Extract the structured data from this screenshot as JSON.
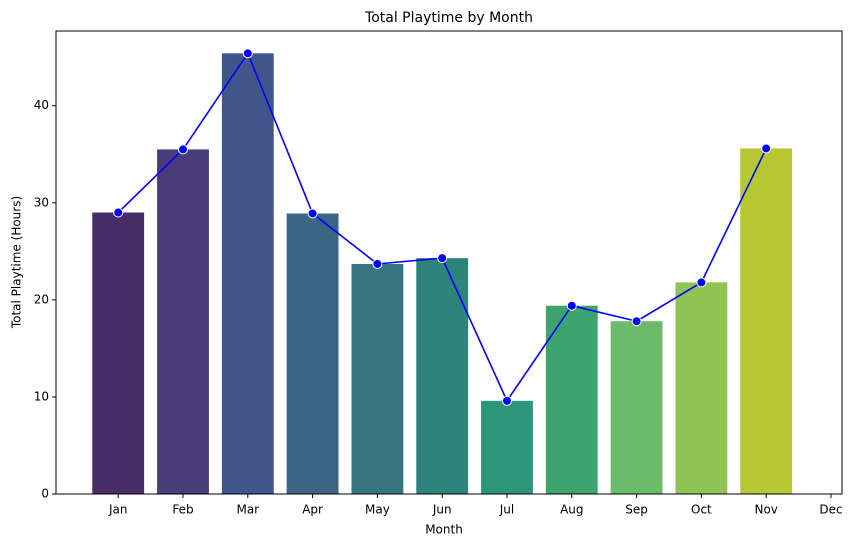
{
  "chart_data": {
    "type": "bar",
    "title": "Total Playtime by Month",
    "x_label": "Month",
    "y_label": "Total Playtime (Hours)",
    "categories": [
      "Jan",
      "Feb",
      "Mar",
      "Apr",
      "May",
      "Jun",
      "Jul",
      "Aug",
      "Sep",
      "Oct",
      "Nov",
      "Dec"
    ],
    "values": [
      29.0,
      35.5,
      45.4,
      28.9,
      23.7,
      24.3,
      9.6,
      19.4,
      17.8,
      21.8,
      35.6,
      null
    ],
    "colors": [
      "#472c65",
      "#483d78",
      "#42558a",
      "#3b6583",
      "#36757f",
      "#2e837a",
      "#2c967b",
      "#3ea46f",
      "#6bbb6a",
      "#8fc354",
      "#b5c733",
      null
    ],
    "overlay": "line",
    "line_color": "#0000ff",
    "ylim": [
      0,
      47.7
    ],
    "yticks": [
      0,
      10,
      20,
      30,
      40
    ],
    "grid": false
  }
}
